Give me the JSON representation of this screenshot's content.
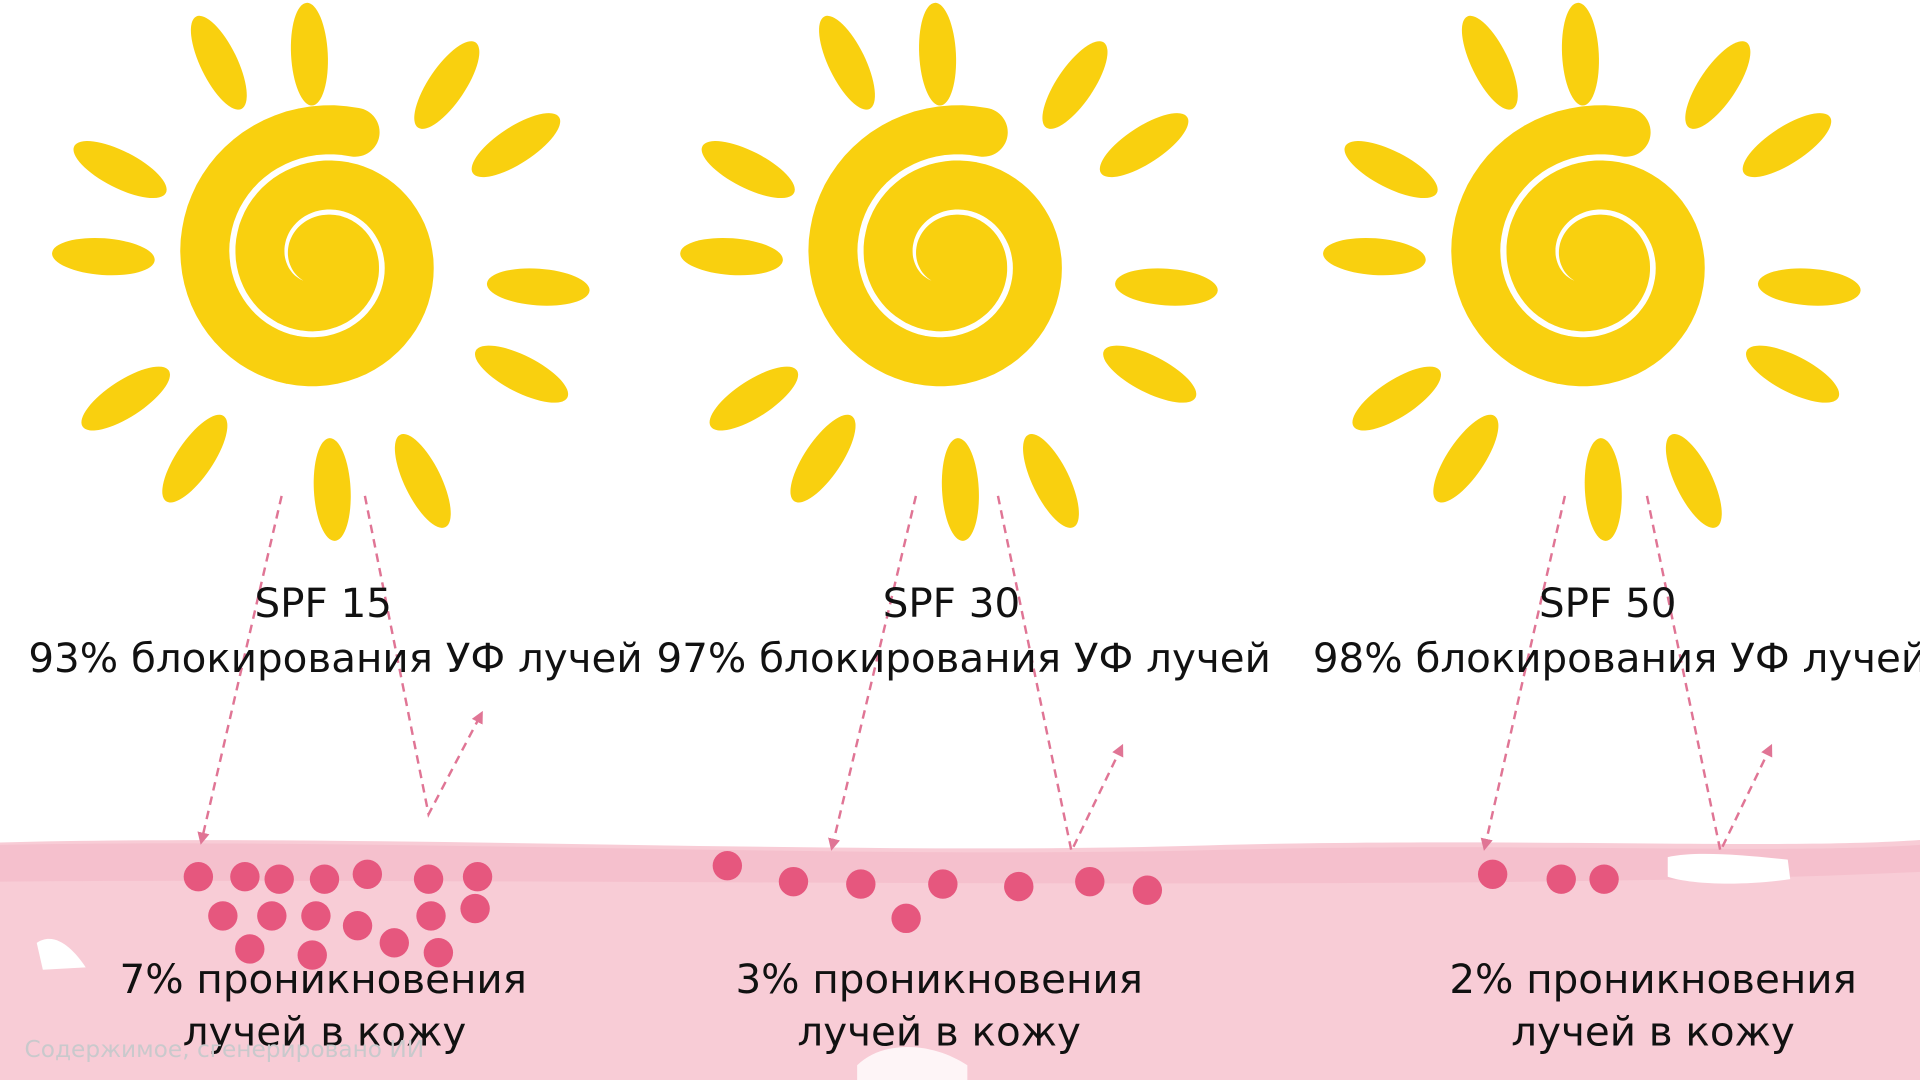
{
  "panels": [
    {
      "title": "SPF 15",
      "blocking": "93% блокирования УФ лучей",
      "penetration": [
        "7% проникновения",
        "лучей в кожу"
      ]
    },
    {
      "title": "SPF 30",
      "blocking": "97% блокирования УФ лучей",
      "penetration": [
        "3% проникновения",
        "лучей в кожу"
      ]
    },
    {
      "title": "SPF 50",
      "blocking": "98% блокирования УФ лучей",
      "penetration": [
        "2% проникновения",
        "лучей в кожу"
      ]
    }
  ],
  "watermark": "Содержимое, сгенерировано ИИ"
}
